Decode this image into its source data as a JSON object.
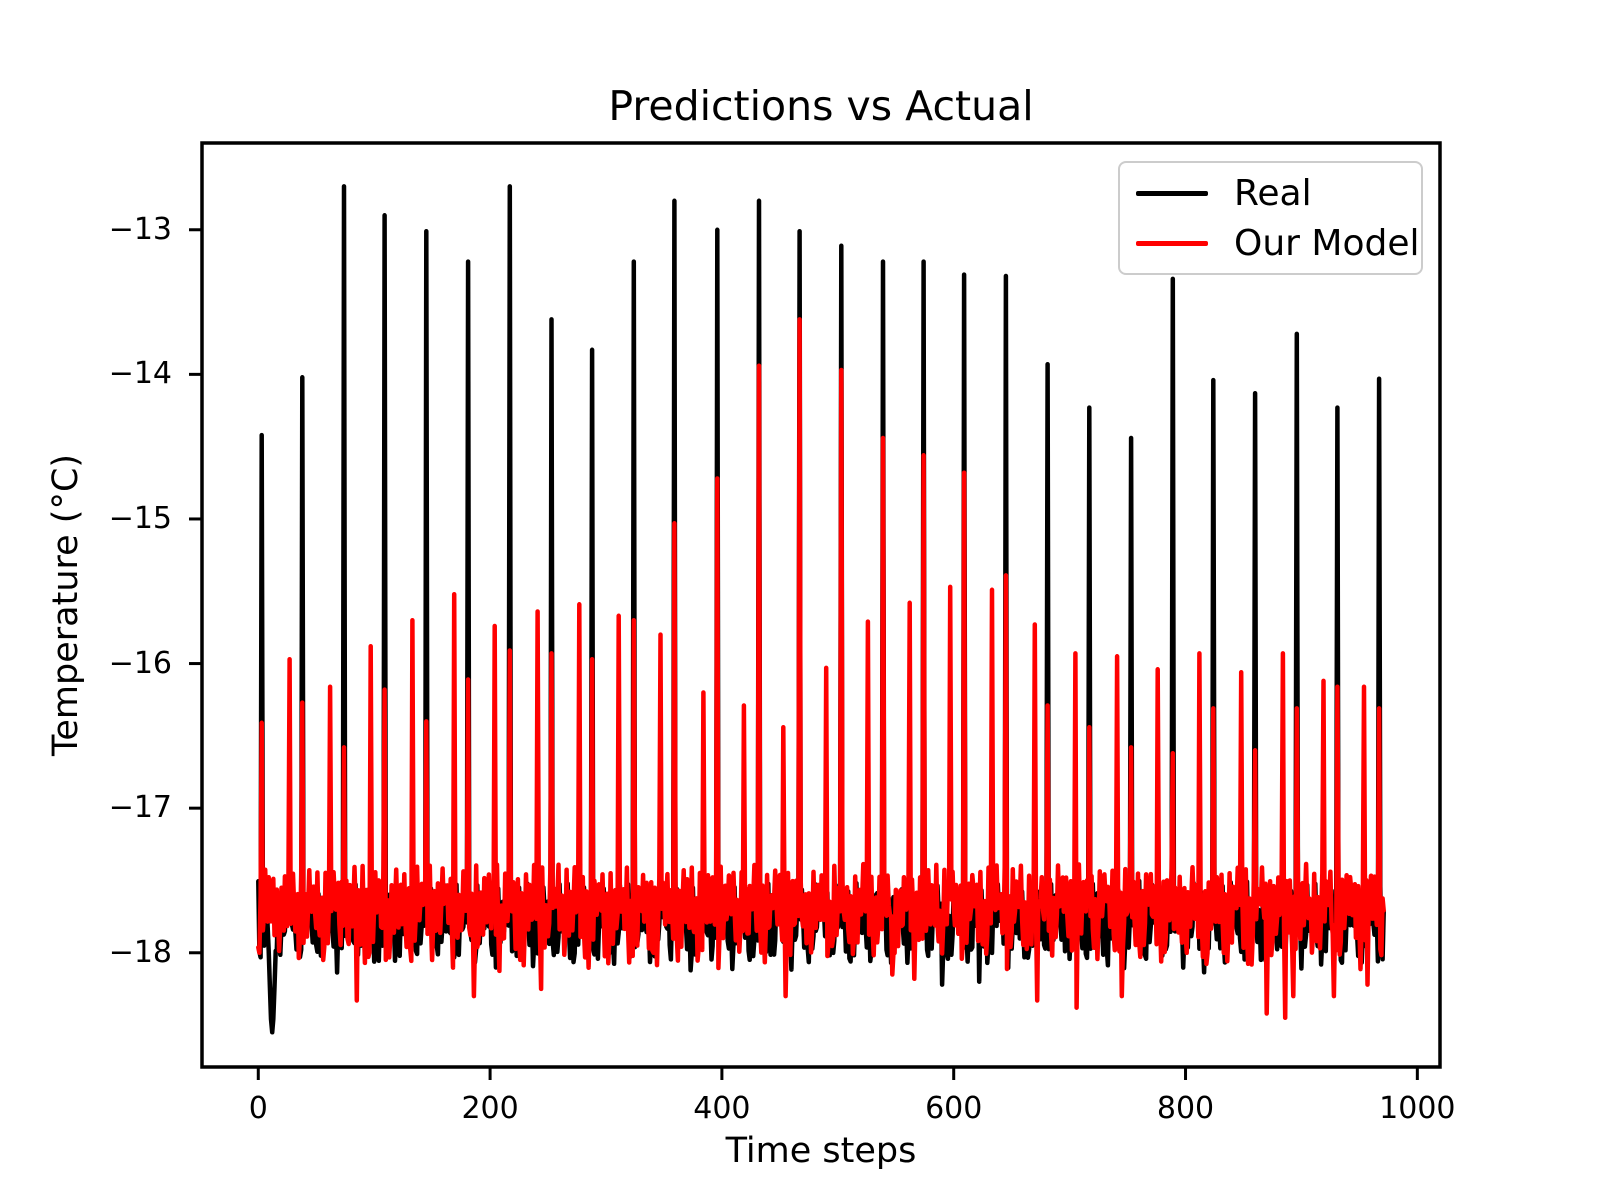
{
  "chart_data": {
    "type": "line",
    "title": "Predictions vs Actual",
    "xlabel": "Time steps",
    "ylabel": "Temperature (°C)",
    "xlim": [
      -48.55,
      1019.55
    ],
    "ylim": [
      -18.79,
      -12.4
    ],
    "xticks": [
      0,
      200,
      400,
      600,
      800,
      1000
    ],
    "yticks": [
      -13,
      -14,
      -15,
      -16,
      -17,
      -18
    ],
    "grid": false,
    "n_points": 972,
    "legend": {
      "position": "upper right",
      "entries": [
        {
          "label": "Real",
          "color": "#000000"
        },
        {
          "label": "Our Model",
          "color": "#ff0000"
        }
      ]
    },
    "series": [
      {
        "name": "Real",
        "color": "#000000",
        "line_width": 4.5
      },
      {
        "name": "Our Model",
        "color": "#ff0000",
        "line_width": 4.5
      }
    ],
    "baseline": {
      "high": -17.5,
      "low": -18.16,
      "model_top": -17.26,
      "osc_period": 3.55,
      "start_dip": {
        "x": 12,
        "value": -18.55
      }
    },
    "spike_period": 35.7,
    "spikes": [
      {
        "x": 3,
        "real": -14.42,
        "model": -16.41,
        "pre_x": null,
        "pre_model": null
      },
      {
        "x": 38,
        "real": -14.02,
        "model": -16.27,
        "pre_x": 27,
        "pre_model": -15.97
      },
      {
        "x": 74,
        "real": -12.7,
        "model": -16.58,
        "pre_x": 62,
        "pre_model": -16.16
      },
      {
        "x": 109,
        "real": -12.9,
        "model": -16.18,
        "pre_x": 97,
        "pre_model": -15.88
      },
      {
        "x": 145,
        "real": -13.01,
        "model": -16.4,
        "pre_x": 133,
        "pre_model": -15.7
      },
      {
        "x": 181,
        "real": -13.22,
        "model": -16.11,
        "pre_x": 169,
        "pre_model": -15.52
      },
      {
        "x": 217,
        "real": -12.7,
        "model": -15.91,
        "pre_x": 204,
        "pre_model": -15.74
      },
      {
        "x": 253,
        "real": -13.62,
        "model": -15.93,
        "pre_x": 241,
        "pre_model": -15.64
      },
      {
        "x": 288,
        "real": -13.83,
        "model": -15.97,
        "pre_x": 277,
        "pre_model": -15.59
      },
      {
        "x": 324,
        "real": -13.22,
        "model": -15.7,
        "pre_x": 311,
        "pre_model": -15.67
      },
      {
        "x": 359,
        "real": -12.8,
        "model": -15.03,
        "pre_x": 347,
        "pre_model": -15.8
      },
      {
        "x": 396,
        "real": -13.0,
        "model": -14.72,
        "pre_x": 384,
        "pre_model": -16.2
      },
      {
        "x": 432,
        "real": -12.8,
        "model": -13.94,
        "pre_x": 419,
        "pre_model": -16.29
      },
      {
        "x": 467,
        "real": -13.01,
        "model": -13.62,
        "pre_x": 453,
        "pre_model": -16.44
      },
      {
        "x": 503,
        "real": -13.11,
        "model": -13.97,
        "pre_x": 490,
        "pre_model": -16.03
      },
      {
        "x": 539,
        "real": -13.22,
        "model": -14.44,
        "pre_x": 526,
        "pre_model": -15.71
      },
      {
        "x": 574,
        "real": -13.22,
        "model": -14.56,
        "pre_x": 562,
        "pre_model": -15.58
      },
      {
        "x": 609,
        "real": -13.31,
        "model": -14.68,
        "pre_x": 597,
        "pre_model": -15.47
      },
      {
        "x": 645,
        "real": -13.32,
        "model": -15.39,
        "pre_x": 633,
        "pre_model": -15.49
      },
      {
        "x": 681,
        "real": -13.93,
        "model": -16.29,
        "pre_x": 670,
        "pre_model": -15.73
      },
      {
        "x": 717,
        "real": -14.23,
        "model": -16.44,
        "pre_x": 705,
        "pre_model": -15.93
      },
      {
        "x": 753,
        "real": -14.44,
        "model": -16.58,
        "pre_x": 741,
        "pre_model": -15.95
      },
      {
        "x": 789,
        "real": -13.34,
        "model": -16.62,
        "pre_x": 776,
        "pre_model": -16.04
      },
      {
        "x": 824,
        "real": -14.04,
        "model": -16.31,
        "pre_x": 812,
        "pre_model": -15.93
      },
      {
        "x": 860,
        "real": -14.13,
        "model": -16.6,
        "pre_x": 848,
        "pre_model": -16.06
      },
      {
        "x": 896,
        "real": -13.72,
        "model": -16.31,
        "pre_x": 884,
        "pre_model": -15.93
      },
      {
        "x": 931,
        "real": -14.23,
        "model": -16.16,
        "pre_x": 919,
        "pre_model": -16.12
      },
      {
        "x": 967,
        "real": -14.03,
        "model": -16.31,
        "pre_x": 954,
        "pre_model": -16.16
      }
    ],
    "model_extra_dips": [
      {
        "x": 85,
        "value": -18.33
      },
      {
        "x": 186,
        "value": -18.3
      },
      {
        "x": 244,
        "value": -18.25
      },
      {
        "x": 455,
        "value": -18.3
      },
      {
        "x": 547,
        "value": -18.15
      },
      {
        "x": 566,
        "value": -18.18
      },
      {
        "x": 672,
        "value": -18.33
      },
      {
        "x": 706,
        "value": -18.38
      },
      {
        "x": 745,
        "value": -18.3
      },
      {
        "x": 870,
        "value": -18.42
      },
      {
        "x": 886,
        "value": -18.45
      },
      {
        "x": 893,
        "value": -18.3
      },
      {
        "x": 928,
        "value": -18.3
      },
      {
        "x": 957,
        "value": -18.22
      }
    ],
    "real_extra_dips": [
      {
        "x": 590,
        "value": -18.22
      },
      {
        "x": 622,
        "value": -18.2
      }
    ]
  }
}
